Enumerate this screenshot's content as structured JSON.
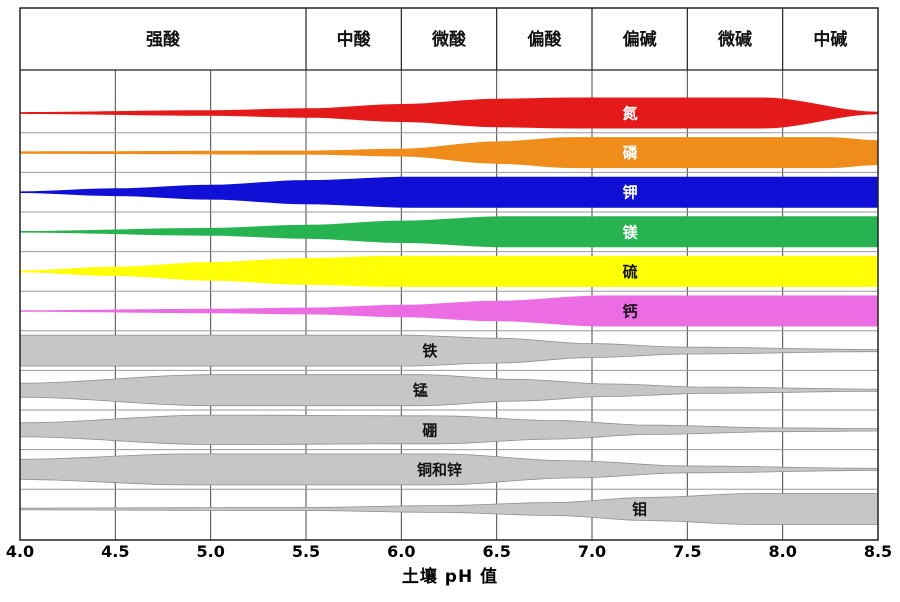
{
  "chart_data": {
    "type": "area",
    "xlabel": "土壤 pH 值",
    "x_range": [
      4.0,
      8.5
    ],
    "x_ticks": [
      "4.0",
      "4.5",
      "5.0",
      "5.5",
      "6.0",
      "6.5",
      "7.0",
      "7.5",
      "8.0",
      "8.5"
    ],
    "grid": true,
    "legend_position": "none",
    "profile_format": "each point is [soil_pH, relative_nutrient_availability_0_to_1] (band half-width)",
    "ph_zones": [
      {
        "label": "强酸",
        "from": 4.0,
        "to": 5.5
      },
      {
        "label": "中酸",
        "from": 5.5,
        "to": 6.0
      },
      {
        "label": "微酸",
        "from": 6.0,
        "to": 6.5
      },
      {
        "label": "偏酸",
        "from": 6.5,
        "to": 7.0
      },
      {
        "label": "偏碱",
        "from": 7.0,
        "to": 7.5
      },
      {
        "label": "微碱",
        "from": 7.5,
        "to": 8.0
      },
      {
        "label": "中碱",
        "from": 8.0,
        "to": 8.5
      }
    ],
    "bands": [
      {
        "name": "nitrogen",
        "label": "氮",
        "color": "#e41a1a",
        "label_color": "#ffffff",
        "label_ph": 7.2,
        "profile": [
          [
            4.0,
            0.06
          ],
          [
            5.0,
            0.18
          ],
          [
            5.5,
            0.3
          ],
          [
            6.0,
            0.58
          ],
          [
            6.5,
            0.92
          ],
          [
            6.9,
            1
          ],
          [
            7.9,
            1
          ],
          [
            8.5,
            0.08
          ]
        ]
      },
      {
        "name": "phosphorus",
        "label": "磷",
        "color": "#ef8c1a",
        "label_color": "#ffffff",
        "label_ph": 7.2,
        "profile": [
          [
            4.0,
            0.08
          ],
          [
            5.5,
            0.13
          ],
          [
            6.0,
            0.25
          ],
          [
            6.5,
            0.72
          ],
          [
            6.9,
            1
          ],
          [
            8.25,
            1
          ],
          [
            8.5,
            0.8
          ]
        ]
      },
      {
        "name": "potassium",
        "label": "钾",
        "color": "#0f0fd6",
        "label_color": "#ffffff",
        "label_ph": 7.2,
        "profile": [
          [
            4.0,
            0.05
          ],
          [
            4.5,
            0.25
          ],
          [
            5.0,
            0.48
          ],
          [
            5.5,
            0.78
          ],
          [
            6.05,
            1
          ],
          [
            8.5,
            1
          ]
        ]
      },
      {
        "name": "magnesium",
        "label": "镁",
        "color": "#27b34f",
        "label_color": "#ffffff",
        "label_ph": 7.2,
        "profile": [
          [
            4.0,
            0.05
          ],
          [
            5.0,
            0.25
          ],
          [
            5.5,
            0.45
          ],
          [
            6.0,
            0.72
          ],
          [
            6.55,
            1
          ],
          [
            8.5,
            1
          ]
        ]
      },
      {
        "name": "sulfur",
        "label": "硫",
        "color": "#ffff05",
        "label_color": "#111111",
        "label_ph": 7.2,
        "profile": [
          [
            4.0,
            0.06
          ],
          [
            4.5,
            0.3
          ],
          [
            5.0,
            0.6
          ],
          [
            5.5,
            0.86
          ],
          [
            5.95,
            1
          ],
          [
            8.5,
            1
          ]
        ]
      },
      {
        "name": "calcium",
        "label": "钙",
        "color": "#ec6ce4",
        "label_color": "#111111",
        "label_ph": 7.2,
        "profile": [
          [
            4.0,
            0.05
          ],
          [
            5.0,
            0.14
          ],
          [
            5.5,
            0.22
          ],
          [
            6.0,
            0.4
          ],
          [
            6.5,
            0.66
          ],
          [
            7.05,
            1
          ],
          [
            8.5,
            1
          ]
        ]
      },
      {
        "name": "iron",
        "label": "铁",
        "color": "#c6c6c6",
        "label_color": "#111111",
        "stroke": "#8f8f8f",
        "label_ph": 6.15,
        "profile": [
          [
            4.0,
            1
          ],
          [
            6.0,
            1
          ],
          [
            6.5,
            0.8
          ],
          [
            7.0,
            0.45
          ],
          [
            7.5,
            0.22
          ],
          [
            8.5,
            0.07
          ]
        ]
      },
      {
        "name": "manganese",
        "label": "锰",
        "color": "#c6c6c6",
        "label_color": "#111111",
        "stroke": "#8f8f8f",
        "label_ph": 6.1,
        "profile": [
          [
            4.0,
            0.45
          ],
          [
            5.0,
            1
          ],
          [
            6.1,
            1
          ],
          [
            6.6,
            0.7
          ],
          [
            7.1,
            0.4
          ],
          [
            7.6,
            0.2
          ],
          [
            8.5,
            0.07
          ]
        ]
      },
      {
        "name": "boron",
        "label": "硼",
        "color": "#c6c6c6",
        "label_color": "#111111",
        "stroke": "#8f8f8f",
        "label_ph": 6.15,
        "profile": [
          [
            4.0,
            0.45
          ],
          [
            5.0,
            0.95
          ],
          [
            6.2,
            0.9
          ],
          [
            6.8,
            0.6
          ],
          [
            7.3,
            0.3
          ],
          [
            8.0,
            0.12
          ],
          [
            8.5,
            0.08
          ]
        ]
      },
      {
        "name": "copper-and-zinc",
        "label": "铜和锌",
        "color": "#c6c6c6",
        "label_color": "#111111",
        "stroke": "#8f8f8f",
        "label_ph": 6.2,
        "profile": [
          [
            4.0,
            0.65
          ],
          [
            4.9,
            1
          ],
          [
            6.2,
            1
          ],
          [
            6.9,
            0.55
          ],
          [
            7.5,
            0.22
          ],
          [
            8.5,
            0.07
          ]
        ]
      },
      {
        "name": "molybdenum",
        "label": "钼",
        "color": "#c6c6c6",
        "label_color": "#111111",
        "stroke": "#8f8f8f",
        "label_ph": 7.25,
        "profile": [
          [
            4.0,
            0.06
          ],
          [
            5.5,
            0.1
          ],
          [
            6.2,
            0.22
          ],
          [
            6.8,
            0.42
          ],
          [
            7.3,
            0.75
          ],
          [
            7.85,
            1
          ],
          [
            8.5,
            1
          ]
        ]
      }
    ]
  }
}
